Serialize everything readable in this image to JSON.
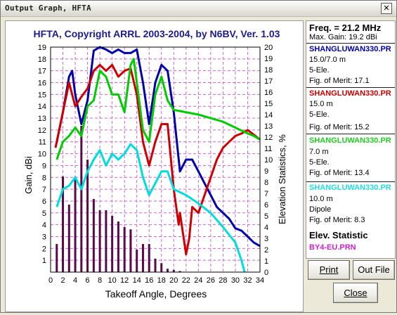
{
  "window": {
    "title": "Output Graph, HFTA",
    "close_glyph": "✕"
  },
  "chart_data": {
    "type": "line",
    "title": "HFTA, Copyright ARRL 2003-2004, by N6BV, Ver. 1.03",
    "xlabel": "Takeoff Angle, Degrees",
    "ylabel": "Gain, dBi",
    "y2label": "Elevation Statistics, %",
    "xlim": [
      0,
      34
    ],
    "ylim": [
      0,
      19
    ],
    "y2lim": [
      0,
      20
    ],
    "x_ticks": [
      0,
      2,
      4,
      6,
      8,
      10,
      12,
      14,
      16,
      18,
      20,
      22,
      24,
      26,
      28,
      30,
      32,
      34
    ],
    "y_ticks": [
      1,
      2,
      3,
      4,
      5,
      6,
      7,
      8,
      9,
      10,
      11,
      12,
      13,
      14,
      15,
      16,
      17,
      18,
      19
    ],
    "y2_ticks": [
      0,
      1,
      2,
      3,
      4,
      5,
      6,
      7,
      8,
      9,
      10,
      11,
      12,
      13,
      14,
      15,
      16,
      17,
      18,
      19,
      20
    ],
    "grid": true,
    "series": [
      {
        "name": "SHANGLUWAN330.PR",
        "color": "#0000aa",
        "points": [
          [
            1,
            11
          ],
          [
            2,
            13.5
          ],
          [
            3,
            16.5
          ],
          [
            3.5,
            17
          ],
          [
            4,
            15
          ],
          [
            5,
            12.5
          ],
          [
            6,
            14.5
          ],
          [
            7,
            18.7
          ],
          [
            8,
            19
          ],
          [
            9,
            18.8
          ],
          [
            10,
            18.5
          ],
          [
            11,
            18.8
          ],
          [
            12,
            18.5
          ],
          [
            13,
            18.5
          ],
          [
            14,
            18.8
          ],
          [
            15,
            16
          ],
          [
            16,
            12.5
          ],
          [
            17,
            16
          ],
          [
            18,
            17.5
          ],
          [
            19,
            17
          ],
          [
            20,
            13.5
          ],
          [
            21,
            8.5
          ],
          [
            22,
            9.5
          ],
          [
            23,
            9.5
          ],
          [
            24,
            8.5
          ],
          [
            25,
            7.5
          ],
          [
            26,
            6.5
          ],
          [
            27,
            5.5
          ],
          [
            28,
            5
          ],
          [
            29,
            4.5
          ],
          [
            30,
            3.7
          ],
          [
            31,
            3.5
          ],
          [
            32,
            3
          ],
          [
            33,
            2.5
          ],
          [
            34,
            2.2
          ]
        ]
      },
      {
        "name": "SHANGLUWAN330.PR",
        "color": "#cc0000",
        "points": [
          [
            0.8,
            10.5
          ],
          [
            1,
            11
          ],
          [
            2,
            13.5
          ],
          [
            3,
            16
          ],
          [
            4,
            14
          ],
          [
            5,
            14.8
          ],
          [
            6,
            15.5
          ],
          [
            7,
            17
          ],
          [
            8,
            17.5
          ],
          [
            9,
            17
          ],
          [
            10,
            17.5
          ],
          [
            11,
            16.5
          ],
          [
            12,
            17
          ],
          [
            13,
            17.2
          ],
          [
            14,
            15
          ],
          [
            15,
            11
          ],
          [
            16,
            9
          ],
          [
            17,
            11
          ],
          [
            18,
            12.5
          ],
          [
            19,
            12.5
          ],
          [
            20,
            7
          ],
          [
            20.8,
            4
          ],
          [
            21,
            5
          ],
          [
            22,
            1.5
          ],
          [
            22.5,
            2.8
          ],
          [
            23,
            5.5
          ],
          [
            24,
            5
          ],
          [
            25,
            6.5
          ],
          [
            26,
            8
          ],
          [
            27,
            9.5
          ],
          [
            28,
            10.5
          ],
          [
            29,
            11
          ],
          [
            30,
            11.5
          ],
          [
            31,
            11.7
          ],
          [
            32,
            12
          ],
          [
            33,
            11.6
          ],
          [
            34,
            11.2
          ]
        ]
      },
      {
        "name": "SHANGLUWAN330.PR",
        "color": "#00cc00",
        "points": [
          [
            1,
            9.5
          ],
          [
            2,
            11
          ],
          [
            3,
            11.5
          ],
          [
            4,
            12.2
          ],
          [
            5,
            11.5
          ],
          [
            6,
            14
          ],
          [
            7,
            14.5
          ],
          [
            8,
            17
          ],
          [
            9,
            16.5
          ],
          [
            10,
            15
          ],
          [
            11,
            15
          ],
          [
            12,
            13.5
          ],
          [
            13,
            17.5
          ],
          [
            13.5,
            18
          ],
          [
            14,
            16
          ],
          [
            15,
            12
          ],
          [
            16,
            11
          ],
          [
            17,
            15
          ],
          [
            18,
            16.5
          ],
          [
            19,
            14.5
          ],
          [
            20,
            13.7
          ],
          [
            22,
            13.5
          ],
          [
            24,
            13.3
          ],
          [
            26,
            13
          ],
          [
            28,
            12.7
          ],
          [
            30,
            12.2
          ],
          [
            32,
            11.7
          ],
          [
            33,
            11.5
          ],
          [
            34,
            11.2
          ]
        ]
      },
      {
        "name": "SHANGLUWAN330.PR",
        "color": "#00dddd",
        "points": [
          [
            1,
            5.5
          ],
          [
            2,
            7
          ],
          [
            3,
            7.3
          ],
          [
            4,
            8
          ],
          [
            5,
            7
          ],
          [
            6,
            8.5
          ],
          [
            7,
            9.5
          ],
          [
            8,
            10.3
          ],
          [
            9,
            9
          ],
          [
            10,
            10
          ],
          [
            11,
            9.5
          ],
          [
            12,
            10
          ],
          [
            13,
            10.8
          ],
          [
            14,
            10.3
          ],
          [
            15,
            8
          ],
          [
            16,
            6.5
          ],
          [
            17,
            7.5
          ],
          [
            18,
            8.5
          ],
          [
            19,
            8.5
          ],
          [
            20,
            7
          ],
          [
            22,
            6.5
          ],
          [
            24,
            5.8
          ],
          [
            26,
            5
          ],
          [
            28,
            3.8
          ],
          [
            30,
            2.5
          ],
          [
            31,
            1
          ],
          [
            31.5,
            0
          ]
        ]
      }
    ],
    "elevation_statistics": {
      "name": "BY4-EU.PRN",
      "color": "#5a0a4a",
      "x": [
        1,
        2,
        3,
        4,
        5,
        6,
        7,
        8,
        9,
        10,
        11,
        12,
        13,
        14,
        15,
        16,
        17,
        18,
        19,
        20,
        21
      ],
      "values": [
        2.5,
        8.5,
        6,
        8.5,
        13,
        10,
        6.5,
        5.5,
        5.5,
        5,
        4.5,
        4,
        3.8,
        2,
        2.5,
        2.5,
        1.2,
        0.8,
        0.3,
        0.2,
        0.1
      ]
    }
  },
  "info": {
    "freq": "Freq. = 21.2 MHz",
    "max_gain": "Max. Gain: 19.2 dBi",
    "ant1": {
      "file": "SHANGLUWAN330.PR",
      "color": "#0000aa",
      "line1": "15.0/7.0 m",
      "line2": "5-Ele.",
      "merit": "Fig. of Merit:  17.1"
    },
    "ant2": {
      "file": "SHANGLUWAN330.PR",
      "color": "#cc0000",
      "line1": "15.0 m",
      "line2": "5-Ele.",
      "merit": "Fig. of Merit:  15.2"
    },
    "ant3": {
      "file": "SHANGLUWAN330.PR",
      "color": "#22cc22",
      "line1": "7.0 m",
      "line2": "5-Ele.",
      "merit": "Fig. of Merit:  13.4"
    },
    "ant4": {
      "file": "SHANGLUWAN330.PR",
      "color": "#22dddd",
      "line1": "10.0 m",
      "line2": "Dipole",
      "merit": "Fig. of Merit:  8.3"
    },
    "elev_title": "Elev. Statistic",
    "elev_file": "BY4-EU.PRN",
    "elev_color": "#cc22cc"
  },
  "buttons": {
    "print": "Print",
    "out_file": "Out File",
    "close": "Close"
  }
}
